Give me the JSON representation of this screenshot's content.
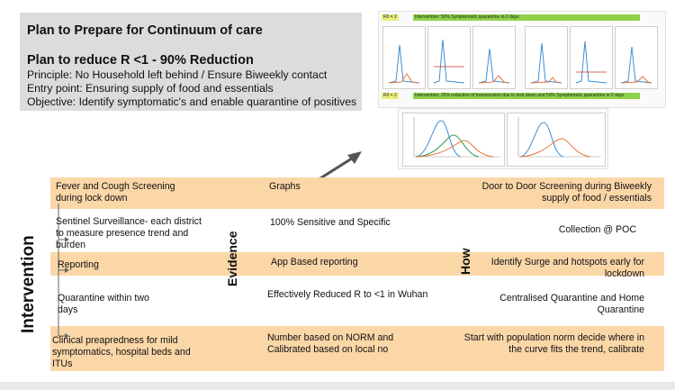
{
  "header": {
    "title": "Plan to Prepare for Continuum of care",
    "subtitle": "Plan to reduce R <1 - 90% Reduction",
    "principle": "Principle: No Household left behind / Ensure Biweekly contact",
    "entry_point": "Entry point: Ensuring supply of food and essentials",
    "objective": "Objective: Identify symptomatic's and enable quarantine of positives"
  },
  "graphs": {
    "top_tag1": "R0 = 2",
    "top_tag2": "Intervention: 50% Symptomatic quarantine in 2 days",
    "bottom_tag1": "R0 = 2",
    "bottom_tag2": "Intervention: 25% reduction of transmission due to lock down and 50% Symptomatic quarantine in 2 days"
  },
  "labels": {
    "intervention": "Intervention",
    "evidence": "Evidence",
    "how": "How"
  },
  "rows": [
    {
      "intervention": "Fever and Cough Screening during lock down",
      "evidence": "Graphs",
      "how": "Door to Door Screening during Biweekly supply of food / essentials"
    },
    {
      "intervention": "Sentinel Surveillance- each district to measure presence trend and burden",
      "evidence": "100% Sensitive and Specific",
      "how": "Collection @ POC"
    },
    {
      "intervention": "Reporting",
      "evidence": "App Based reporting",
      "how": "Identify Surge and hotspots early for lockdown"
    },
    {
      "intervention": "Quarantine within two days",
      "evidence": "Effectively Reduced R to <1 in Wuhan",
      "how": "Centralised Quarantine and Home Quarantine"
    },
    {
      "intervention": "Clinical preapredness for mild symptomatics, hospital beds and ITUs",
      "evidence": "Number based on NORM and Calibrated based on local no",
      "how": "Start with population norm decide where in the curve fits the trend, calibrate"
    }
  ],
  "colors": {
    "band": "#fbd7a8",
    "header_box": "#dcdcdc",
    "arrow": "#555555"
  }
}
